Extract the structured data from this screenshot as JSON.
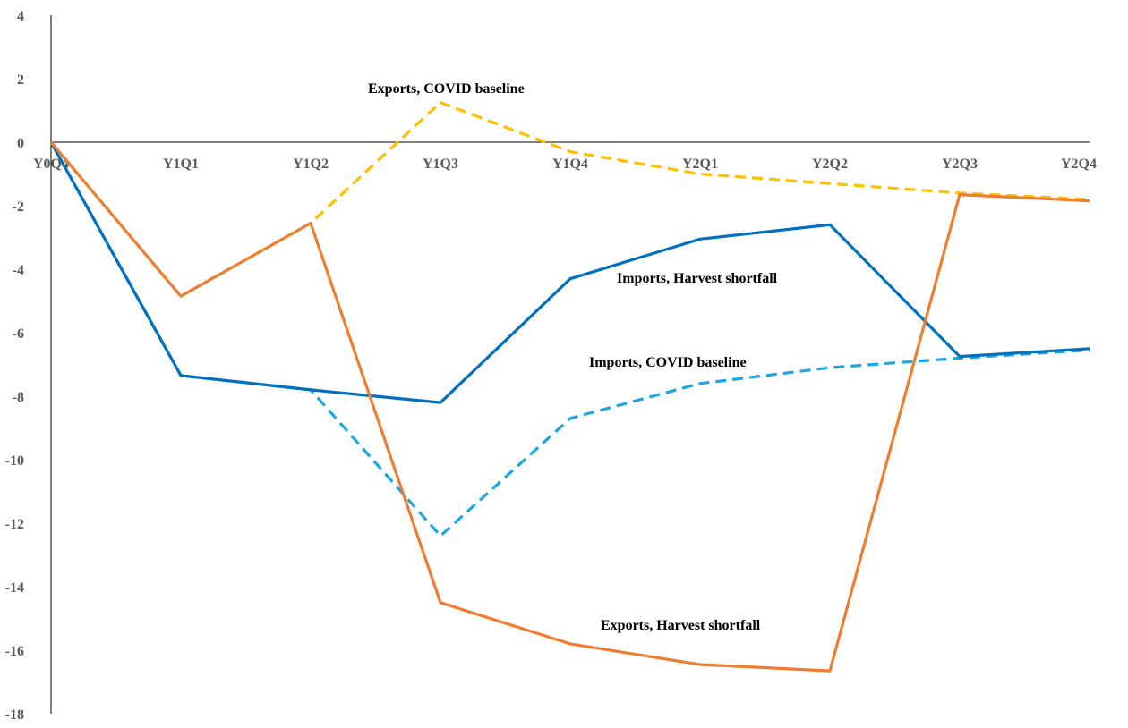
{
  "chart_data": {
    "type": "line",
    "title": "",
    "xlabel": "",
    "ylabel": "",
    "categories": [
      "Y0Q4",
      "Y1Q1",
      "Y1Q2",
      "Y1Q3",
      "Y1Q4",
      "Y2Q1",
      "Y2Q2",
      "Y2Q3",
      "Y2Q4"
    ],
    "y_ticks": [
      "4",
      "2",
      "0",
      "-2",
      "-4",
      "-6",
      "-8",
      "-10",
      "-12",
      "-14",
      "-16",
      "-18"
    ],
    "ylim": [
      -18,
      4
    ],
    "grid": false,
    "legend": "none",
    "series": [
      {
        "name": "Imports, COVID baseline",
        "color": "#1CA7E2",
        "dash": "dashed",
        "values": [
          0,
          -7.35,
          -7.8,
          -12.4,
          -8.7,
          -7.6,
          -7.1,
          -6.8,
          -6.55
        ]
      },
      {
        "name": "Exports, COVID baseline",
        "color": "#FFC000",
        "dash": "dashed",
        "values": [
          0,
          -4.85,
          -2.55,
          1.25,
          -0.3,
          -1.0,
          -1.3,
          -1.6,
          -1.8
        ]
      },
      {
        "name": "Imports, Harvest shortfall",
        "color": "#0070C0",
        "dash": "solid",
        "values": [
          0,
          -7.35,
          -7.8,
          -8.2,
          -4.3,
          -3.05,
          -2.6,
          -6.75,
          -6.5
        ]
      },
      {
        "name": "Exports, Harvest shortfall",
        "color": "#ED7D31",
        "dash": "solid",
        "values": [
          0,
          -4.85,
          -2.55,
          -14.5,
          -15.8,
          -16.45,
          -16.65,
          -1.65,
          -1.85
        ]
      }
    ],
    "annotations": [
      {
        "text": "Exports, COVID baseline"
      },
      {
        "text": "Imports, Harvest shortfall"
      },
      {
        "text": "Imports, COVID baseline"
      },
      {
        "text": "Exports, Harvest shortfall"
      }
    ]
  }
}
